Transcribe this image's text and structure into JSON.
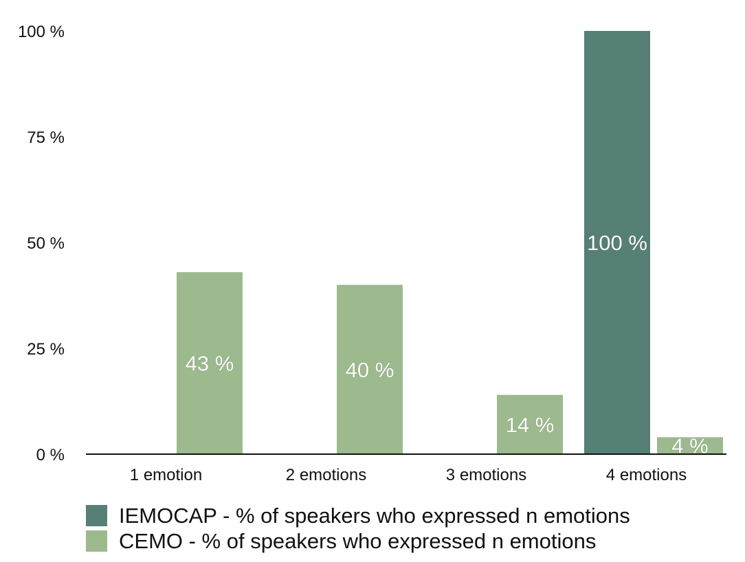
{
  "chart_data": {
    "type": "bar",
    "title": "",
    "xlabel": "",
    "ylabel": "",
    "categories": [
      "1 emotion",
      "2 emotions",
      "3 emotions",
      "4 emotions"
    ],
    "ylim": [
      0,
      100
    ],
    "yticks": [
      0,
      25,
      50,
      75,
      100
    ],
    "ytick_labels": [
      "0 %",
      "25 %",
      "50 %",
      "75 %",
      "100 %"
    ],
    "grid": false,
    "legend_position": "bottom-left",
    "series": [
      {
        "name": "IEMOCAP - % of speakers who expressed n emotions",
        "color": "#567f76",
        "values": [
          0,
          0,
          0,
          100
        ],
        "labels": [
          null,
          null,
          null,
          "100 %"
        ]
      },
      {
        "name": "CEMO - % of speakers who expressed n emotions",
        "color": "#9dba8e",
        "values": [
          43,
          40,
          14,
          4
        ],
        "labels": [
          "43 %",
          "40 %",
          "14 %",
          "4 %"
        ]
      }
    ]
  }
}
